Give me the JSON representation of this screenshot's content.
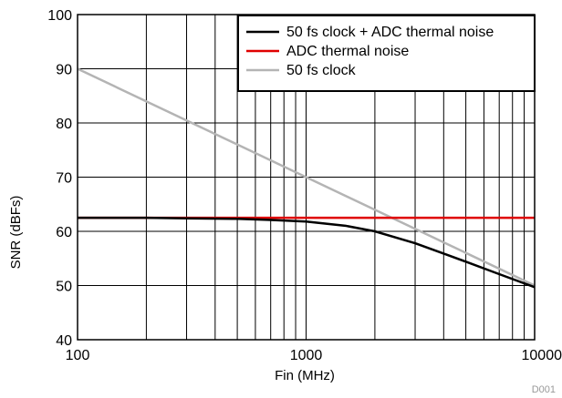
{
  "chart_data": {
    "type": "line",
    "xlabel": "Fin (MHz)",
    "ylabel": "SNR (dBFs)",
    "x_scale": "log",
    "xlim": [
      100,
      10000
    ],
    "ylim": [
      40,
      100
    ],
    "x_ticks": [
      100,
      1000,
      10000
    ],
    "x_tick_labels": [
      "100",
      "1000",
      "10000"
    ],
    "y_ticks": [
      40,
      50,
      60,
      70,
      80,
      90,
      100
    ],
    "y_tick_labels": [
      "40",
      "50",
      "60",
      "70",
      "80",
      "90",
      "100"
    ],
    "grid": true,
    "legend_position": "top-right",
    "figure_id": "D001",
    "series": [
      {
        "name": "50 fs clock + ADC thermal noise",
        "color": "#000000",
        "x": [
          100,
          200,
          300,
          500,
          700,
          1000,
          1500,
          2000,
          3000,
          4000,
          5000,
          7000,
          10000
        ],
        "y": [
          62.5,
          62.5,
          62.4,
          62.3,
          62.1,
          61.8,
          61.0,
          60.0,
          57.8,
          55.9,
          54.4,
          52.1,
          49.7
        ]
      },
      {
        "name": "ADC thermal noise",
        "color": "#e00000",
        "x": [
          100,
          10000
        ],
        "y": [
          62.5,
          62.5
        ]
      },
      {
        "name": "50 fs clock",
        "color": "#b4b4b4",
        "x": [
          100,
          10000
        ],
        "y": [
          90.0,
          50.0
        ]
      }
    ]
  }
}
